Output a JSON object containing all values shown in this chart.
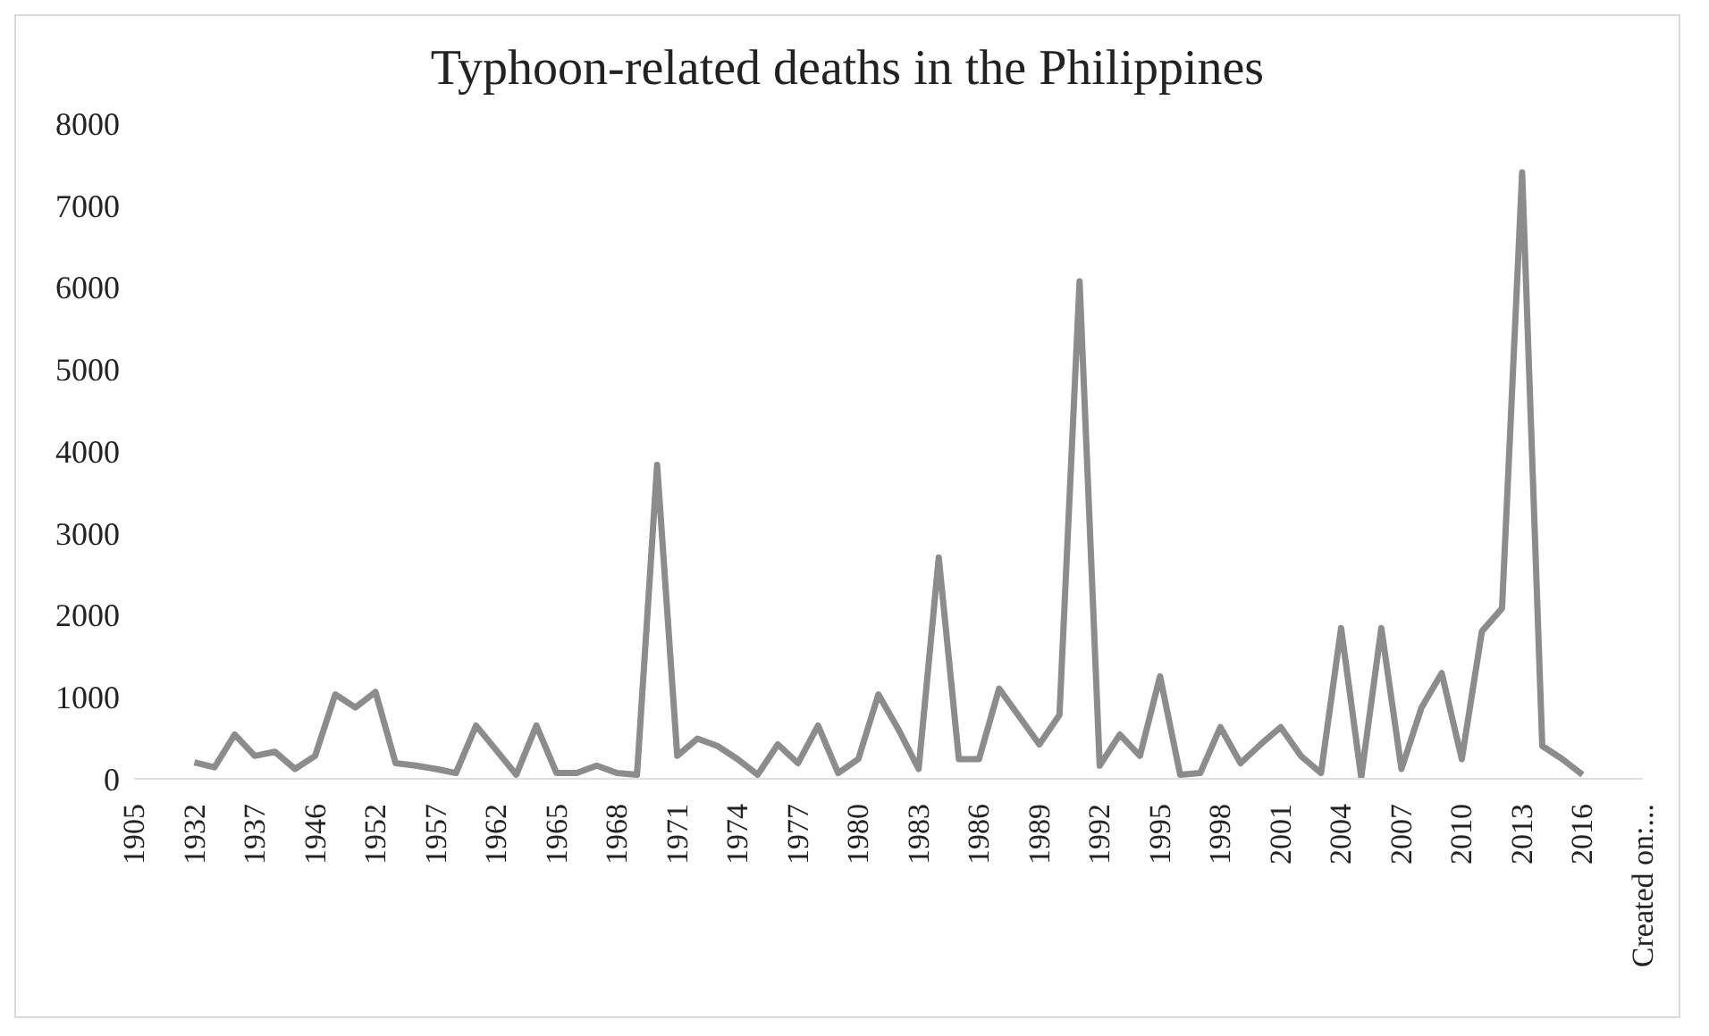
{
  "chart_data": {
    "type": "line",
    "title": "Typhoon-related  deaths in the Philippines",
    "categories": [
      "1905",
      null,
      null,
      "1932",
      null,
      null,
      "1937",
      null,
      null,
      "1946",
      null,
      null,
      "1952",
      null,
      null,
      "1957",
      null,
      null,
      "1962",
      null,
      null,
      "1965",
      null,
      null,
      "1968",
      null,
      null,
      "1971",
      null,
      null,
      "1974",
      null,
      null,
      "1977",
      null,
      null,
      "1980",
      null,
      null,
      "1983",
      null,
      null,
      "1986",
      null,
      null,
      "1989",
      null,
      null,
      "1992",
      null,
      null,
      "1995",
      null,
      null,
      "1998",
      null,
      null,
      "2001",
      null,
      null,
      "2004",
      null,
      null,
      "2007",
      null,
      null,
      "2010",
      null,
      null,
      "2013",
      null,
      null,
      "2016",
      null,
      null,
      "Created on:..."
    ],
    "series": [
      {
        "color": "#8c8c8c",
        "values": [
          null,
          null,
          null,
          200,
          140,
          540,
          280,
          330,
          120,
          280,
          1030,
          870,
          1060,
          190,
          160,
          120,
          70,
          650,
          350,
          50,
          650,
          70,
          70,
          160,
          70,
          50,
          3830,
          280,
          490,
          400,
          240,
          50,
          420,
          190,
          650,
          70,
          240,
          1030,
          600,
          120,
          2700,
          240,
          240,
          1100,
          760,
          420,
          780,
          6070,
          160,
          540,
          280,
          1250,
          50,
          70,
          630,
          190,
          420,
          630,
          280,
          70,
          1840,
          20,
          1840,
          120,
          870,
          1290,
          240,
          1800,
          2080,
          7400,
          400,
          240,
          50,
          null,
          null,
          null
        ]
      }
    ],
    "ylim": [
      0,
      8000
    ],
    "yticks": [
      0,
      1000,
      2000,
      3000,
      4000,
      5000,
      6000,
      7000,
      8000
    ]
  }
}
